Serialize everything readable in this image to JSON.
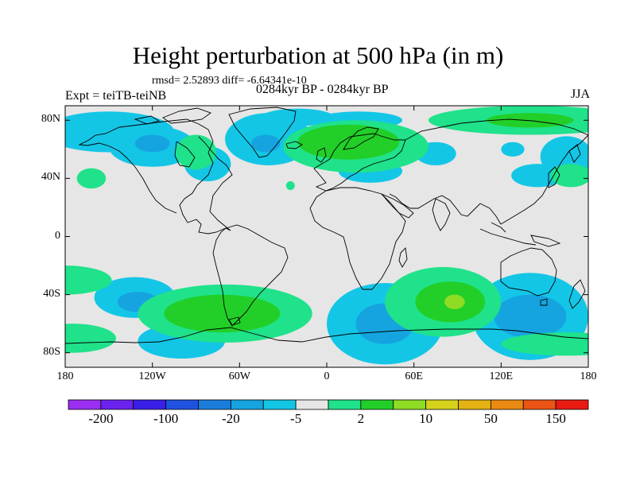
{
  "title": "Height perturbation at 500 hPa (in m)",
  "stats": "rmsd= 2.52893 diff= -6.64341e-10",
  "experiment": "Expt = teiTB-teiNB",
  "period": "0284kyr BP - 0284kyr BP",
  "season": "JJA",
  "axes": {
    "lat_ticks": [
      {
        "value": 80,
        "label": "80N"
      },
      {
        "value": 40,
        "label": "40N"
      },
      {
        "value": 0,
        "label": "0"
      },
      {
        "value": -40,
        "label": "40S"
      },
      {
        "value": -80,
        "label": "80S"
      }
    ],
    "lon_ticks": [
      {
        "value": -180,
        "label": "180"
      },
      {
        "value": -120,
        "label": "120W"
      },
      {
        "value": -60,
        "label": "60W"
      },
      {
        "value": 0,
        "label": "0"
      },
      {
        "value": 60,
        "label": "60E"
      },
      {
        "value": 120,
        "label": "120E"
      },
      {
        "value": 180,
        "label": "180"
      }
    ],
    "lat_range": [
      -90,
      90
    ],
    "lon_range": [
      -180,
      180
    ]
  },
  "colorbar": {
    "colors": [
      "#9b2ef0",
      "#6a22ee",
      "#3a1fe8",
      "#1f52e0",
      "#1a7ddc",
      "#15a4e0",
      "#14c6e6",
      "#e6e6e6",
      "#1fe28a",
      "#22cf28",
      "#8edc24",
      "#d6d21c",
      "#e4b214",
      "#ea8a12",
      "#ea5414",
      "#e81a12"
    ],
    "labels": [
      {
        "boundary": 1,
        "text": "-200"
      },
      {
        "boundary": 3,
        "text": "-100"
      },
      {
        "boundary": 5,
        "text": "-20"
      },
      {
        "boundary": 7,
        "text": "-5"
      },
      {
        "boundary": 9,
        "text": "2"
      },
      {
        "boundary": 11,
        "text": "10"
      },
      {
        "boundary": 13,
        "text": "50"
      },
      {
        "boundary": 15,
        "text": "150"
      }
    ]
  },
  "fields": {
    "neg_light": [
      {
        "lon": -150,
        "lat": 72,
        "rlon": 45,
        "rlat": 14
      },
      {
        "lon": -120,
        "lat": 62,
        "rlon": 30,
        "rlat": 14
      },
      {
        "lon": -40,
        "lat": 67,
        "rlon": 30,
        "rlat": 18
      },
      {
        "lon": -20,
        "lat": 82,
        "rlon": 25,
        "rlat": 6
      },
      {
        "lon": -82,
        "lat": 50,
        "rlon": 16,
        "rlat": 12
      },
      {
        "lon": 22,
        "lat": 80,
        "rlon": 30,
        "rlat": 6
      },
      {
        "lon": 30,
        "lat": 45,
        "rlon": 22,
        "rlat": 8
      },
      {
        "lon": 75,
        "lat": 57,
        "rlon": 14,
        "rlat": 8
      },
      {
        "lon": 165,
        "lat": 55,
        "rlon": 18,
        "rlat": 14
      },
      {
        "lon": 145,
        "lat": 42,
        "rlon": 18,
        "rlat": 8
      },
      {
        "lon": 128,
        "lat": 60,
        "rlon": 8,
        "rlat": 5
      },
      {
        "lon": -132,
        "lat": -42,
        "rlon": 28,
        "rlat": 14
      },
      {
        "lon": -100,
        "lat": -72,
        "rlon": 30,
        "rlat": 12
      },
      {
        "lon": 40,
        "lat": -60,
        "rlon": 40,
        "rlat": 28
      },
      {
        "lon": 140,
        "lat": -55,
        "rlon": 40,
        "rlat": 30
      }
    ],
    "neg_mid": [
      {
        "lon": -120,
        "lat": 64,
        "rlon": 12,
        "rlat": 6
      },
      {
        "lon": -42,
        "lat": 64,
        "rlon": 10,
        "rlat": 6
      },
      {
        "lon": -130,
        "lat": -45,
        "rlon": 14,
        "rlat": 7
      },
      {
        "lon": 40,
        "lat": -60,
        "rlon": 20,
        "rlat": 14
      },
      {
        "lon": 140,
        "lat": -55,
        "rlon": 25,
        "rlat": 15
      }
    ],
    "pos_light": [
      {
        "lon": 20,
        "lat": 62,
        "rlon": 50,
        "rlat": 18
      },
      {
        "lon": 140,
        "lat": 80,
        "rlon": 70,
        "rlat": 10
      },
      {
        "lon": -90,
        "lat": 58,
        "rlon": 14,
        "rlat": 12
      },
      {
        "lon": -162,
        "lat": 40,
        "rlon": 10,
        "rlat": 7
      },
      {
        "lon": 168,
        "lat": 42,
        "rlon": 14,
        "rlat": 8
      },
      {
        "lon": -25,
        "lat": 35,
        "rlon": 3,
        "rlat": 3
      },
      {
        "lon": -180,
        "lat": -30,
        "rlon": 32,
        "rlat": 10
      },
      {
        "lon": -70,
        "lat": -53,
        "rlon": 60,
        "rlat": 20
      },
      {
        "lon": 80,
        "lat": -45,
        "rlon": 40,
        "rlat": 24
      },
      {
        "lon": -175,
        "lat": -70,
        "rlon": 30,
        "rlat": 10
      },
      {
        "lon": 165,
        "lat": -74,
        "rlon": 45,
        "rlat": 8
      }
    ],
    "pos_mid": [
      {
        "lon": 15,
        "lat": 65,
        "rlon": 35,
        "rlat": 12
      },
      {
        "lon": -72,
        "lat": -53,
        "rlon": 40,
        "rlat": 13
      },
      {
        "lon": 85,
        "lat": -45,
        "rlon": 24,
        "rlat": 14
      },
      {
        "lon": 140,
        "lat": 80,
        "rlon": 30,
        "rlat": 5
      }
    ],
    "pos_high": [
      {
        "lon": 88,
        "lat": -45,
        "rlon": 7,
        "rlat": 5
      }
    ]
  }
}
